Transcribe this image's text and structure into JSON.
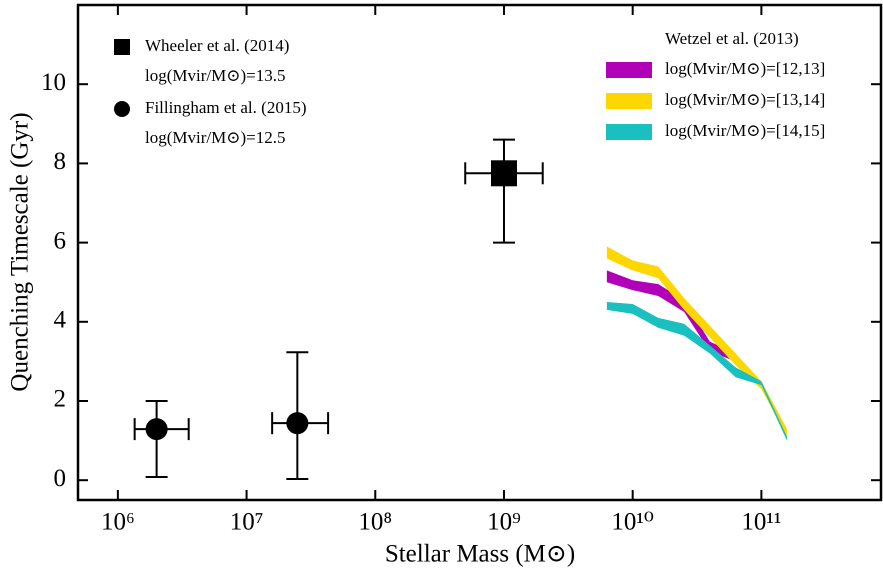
{
  "chart_data": {
    "type": "errorbar-band",
    "xlabel": "Stellar Mass (M⊙)",
    "ylabel": "Quenching Timescale (Gyr)",
    "xscale": "log",
    "xlim": [
      490000,
      850000000000
    ],
    "ylim": [
      -0.5,
      12
    ],
    "xticks": [
      {
        "value": 1000000,
        "label": "10⁶"
      },
      {
        "value": 10000000,
        "label": "10⁷"
      },
      {
        "value": 100000000,
        "label": "10⁸"
      },
      {
        "value": 1000000000,
        "label": "10⁹"
      },
      {
        "value": 10000000000,
        "label": "10¹⁰"
      },
      {
        "value": 100000000000,
        "label": "10¹¹"
      }
    ],
    "yticks": [
      0,
      2,
      4,
      6,
      8,
      10
    ],
    "series": [
      {
        "name": "Wheeler et al. (2014)",
        "sublabel": "log(Mvir/M⊙)=13.5",
        "marker": "square",
        "color": "#000000",
        "x": [
          1000000000
        ],
        "y": [
          7.75
        ],
        "x_low": [
          500000000
        ],
        "x_high": [
          2000000000
        ],
        "y_low": [
          6.0
        ],
        "y_high": [
          8.6
        ]
      },
      {
        "name": "Fillingham et al. (2015)",
        "sublabel": "log(Mvir/M⊙)=12.5",
        "marker": "circle",
        "color": "#000000",
        "x": [
          2000000,
          24800000
        ],
        "y": [
          1.29,
          1.44
        ],
        "x_low": [
          1350000,
          15800000
        ],
        "x_high": [
          3550000,
          43000000
        ],
        "y_low": [
          0.08,
          0.03
        ],
        "y_high": [
          2.0,
          3.23
        ]
      }
    ],
    "band_title": "Wetzel et al. (2013)",
    "bands": [
      {
        "name": "log(Mvir/M⊙)=[12,13]",
        "color": "#b000b8",
        "x": [
          6300000000,
          10000000000,
          15800000000,
          25100000000,
          39800000000,
          63100000000
        ],
        "upper": [
          5.3,
          5.05,
          4.95,
          4.55,
          3.5,
          3.2
        ],
        "lower": [
          5.0,
          4.8,
          4.65,
          4.25,
          3.25,
          3.0
        ]
      },
      {
        "name": "log(Mvir/M⊙)=[13,14]",
        "color": "#ffd700",
        "x": [
          6300000000,
          10000000000,
          15800000000,
          25100000000,
          39800000000,
          63100000000,
          100000000000,
          158000000000
        ],
        "upper": [
          5.9,
          5.55,
          5.4,
          4.6,
          3.9,
          3.2,
          2.5,
          1.3
        ],
        "lower": [
          5.6,
          5.3,
          5.1,
          4.3,
          3.6,
          2.9,
          2.3,
          1.1
        ]
      },
      {
        "name": "log(Mvir/M⊙)=[14,15]",
        "color": "#1abfbf",
        "x": [
          6300000000,
          10000000000,
          15800000000,
          25100000000,
          39800000000,
          63100000000,
          100000000000,
          158000000000
        ],
        "upper": [
          4.5,
          4.45,
          4.1,
          3.95,
          3.4,
          2.85,
          2.5,
          1.1
        ],
        "lower": [
          4.3,
          4.2,
          3.85,
          3.65,
          3.2,
          2.6,
          2.4,
          1.0
        ]
      }
    ]
  }
}
